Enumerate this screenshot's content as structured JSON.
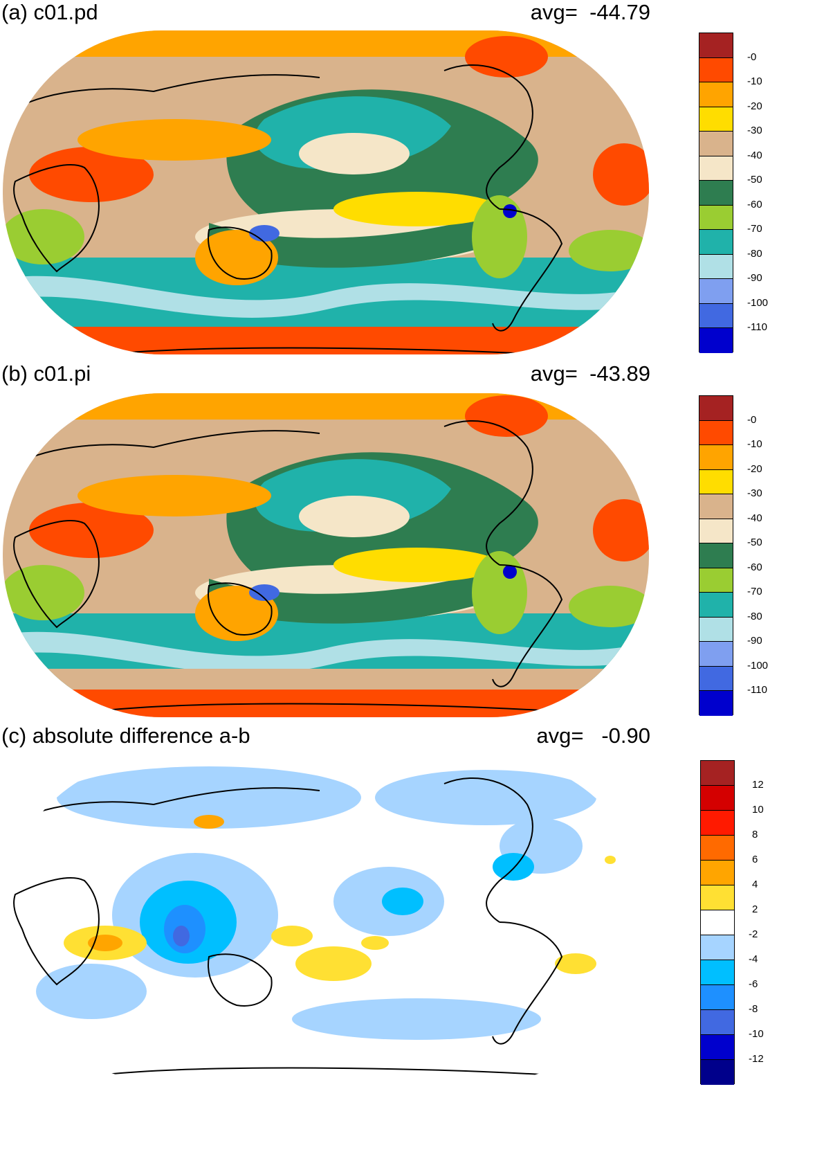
{
  "panels": [
    {
      "id": "a",
      "title": "(a) c01.pd",
      "avg_label": "avg=  -44.79",
      "colorbar": {
        "colors": [
          "#a52222",
          "#ff4a00",
          "#ffa400",
          "#ffdd00",
          "#d9b38c",
          "#f5e6c8",
          "#2e7d50",
          "#9acd32",
          "#20b2aa",
          "#b0e0e6",
          "#7f9ff0",
          "#4169e1",
          "#0000cd"
        ],
        "ticks": [
          "-0",
          "-10",
          "-20",
          "-30",
          "-40",
          "-50",
          "-60",
          "-70",
          "-80",
          "-90",
          "-100",
          "-110"
        ]
      }
    },
    {
      "id": "b",
      "title": "(b) c01.pi",
      "avg_label": "avg=  -43.89",
      "colorbar": {
        "colors": [
          "#a52222",
          "#ff4a00",
          "#ffa400",
          "#ffdd00",
          "#d9b38c",
          "#f5e6c8",
          "#2e7d50",
          "#9acd32",
          "#20b2aa",
          "#b0e0e6",
          "#7f9ff0",
          "#4169e1",
          "#0000cd"
        ],
        "ticks": [
          "-0",
          "-10",
          "-20",
          "-30",
          "-40",
          "-50",
          "-60",
          "-70",
          "-80",
          "-90",
          "-100",
          "-110"
        ]
      }
    },
    {
      "id": "c",
      "title": "(c) absolute difference a-b",
      "avg_label": "avg=   -0.90",
      "colorbar": {
        "colors": [
          "#a52222",
          "#d40000",
          "#ff1a00",
          "#ff6a00",
          "#ffa500",
          "#ffe033",
          "#ffffff",
          "#a6d4ff",
          "#00bfff",
          "#1e90ff",
          "#4169e1",
          "#0000cd",
          "#00008b"
        ],
        "ticks": [
          "12",
          "10",
          "8",
          "6",
          "4",
          "2",
          "-2",
          "-4",
          "-6",
          "-8",
          "-10",
          "-12"
        ]
      }
    }
  ]
}
